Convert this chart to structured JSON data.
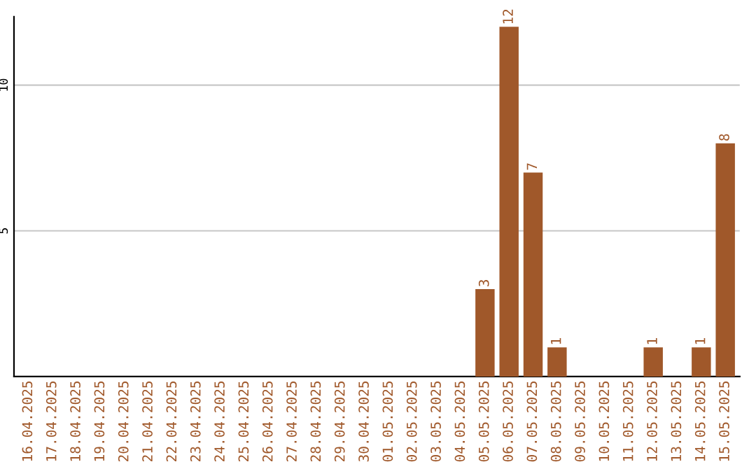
{
  "chart_data": {
    "type": "bar",
    "categories": [
      "16.04.2025",
      "17.04.2025",
      "18.04.2025",
      "19.04.2025",
      "20.04.2025",
      "21.04.2025",
      "22.04.2025",
      "23.04.2025",
      "24.04.2025",
      "25.04.2025",
      "26.04.2025",
      "27.04.2025",
      "28.04.2025",
      "29.04.2025",
      "30.04.2025",
      "01.05.2025",
      "02.05.2025",
      "03.05.2025",
      "04.05.2025",
      "05.05.2025",
      "06.05.2025",
      "07.05.2025",
      "08.05.2025",
      "09.05.2025",
      "10.05.2025",
      "11.05.2025",
      "12.05.2025",
      "13.05.2025",
      "14.05.2025",
      "15.05.2025"
    ],
    "values": [
      0,
      0,
      0,
      0,
      0,
      0,
      0,
      0,
      0,
      0,
      0,
      0,
      0,
      0,
      0,
      0,
      0,
      0,
      0,
      3,
      12,
      7,
      1,
      0,
      0,
      0,
      1,
      0,
      1,
      8
    ],
    "value_labels": [
      null,
      null,
      null,
      null,
      null,
      null,
      null,
      null,
      null,
      null,
      null,
      null,
      null,
      null,
      null,
      null,
      null,
      null,
      null,
      "3",
      "12",
      "7",
      "1",
      null,
      null,
      null,
      "1",
      null,
      "1",
      "8"
    ],
    "color": "#a0582a",
    "ylim": [
      0,
      12.35
    ],
    "yticks": [
      5,
      10
    ],
    "grid": "y"
  }
}
